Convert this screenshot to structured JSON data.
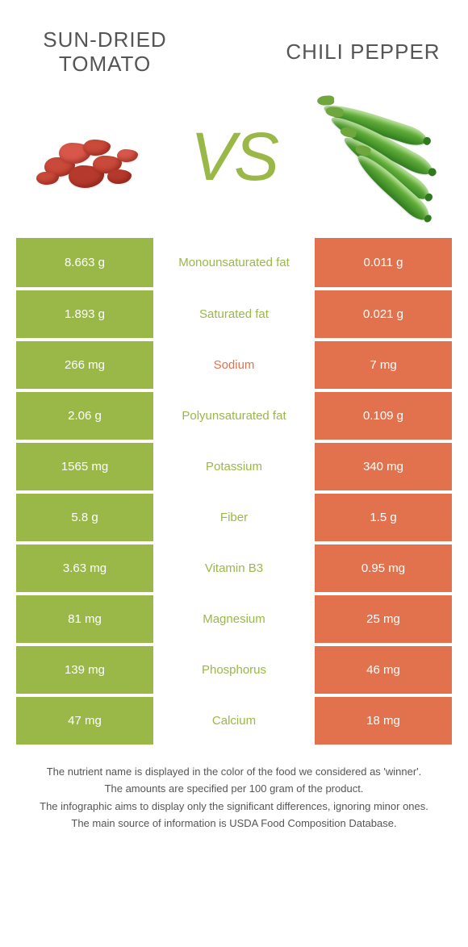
{
  "foods": {
    "left": {
      "name": "Sun-dried tomato",
      "color": "#9ab847"
    },
    "right": {
      "name": "Chili pepper",
      "color": "#e1724d"
    }
  },
  "vs_label": "VS",
  "colors": {
    "green": "#9ab847",
    "orange": "#e1724d",
    "text_gray": "#555555",
    "background": "#ffffff"
  },
  "rows": [
    {
      "left": "8.663 g",
      "nutrient": "Monounsaturated fat",
      "right": "0.011 g",
      "winner": "left"
    },
    {
      "left": "1.893 g",
      "nutrient": "Saturated fat",
      "right": "0.021 g",
      "winner": "left"
    },
    {
      "left": "266 mg",
      "nutrient": "Sodium",
      "right": "7 mg",
      "winner": "right"
    },
    {
      "left": "2.06 g",
      "nutrient": "Polyunsaturated fat",
      "right": "0.109 g",
      "winner": "left"
    },
    {
      "left": "1565 mg",
      "nutrient": "Potassium",
      "right": "340 mg",
      "winner": "left"
    },
    {
      "left": "5.8 g",
      "nutrient": "Fiber",
      "right": "1.5 g",
      "winner": "left"
    },
    {
      "left": "3.63 mg",
      "nutrient": "Vitamin B3",
      "right": "0.95 mg",
      "winner": "left"
    },
    {
      "left": "81 mg",
      "nutrient": "Magnesium",
      "right": "25 mg",
      "winner": "left"
    },
    {
      "left": "139 mg",
      "nutrient": "Phosphorus",
      "right": "46 mg",
      "winner": "left"
    },
    {
      "left": "47 mg",
      "nutrient": "Calcium",
      "right": "18 mg",
      "winner": "left"
    }
  ],
  "footnotes": [
    "The nutrient name is displayed in the color of the food we considered as 'winner'.",
    "The amounts are specified per 100 gram of the product.",
    "The infographic aims to display only the significant differences, ignoring minor ones.",
    "The main source of information is USDA Food Composition Database."
  ]
}
